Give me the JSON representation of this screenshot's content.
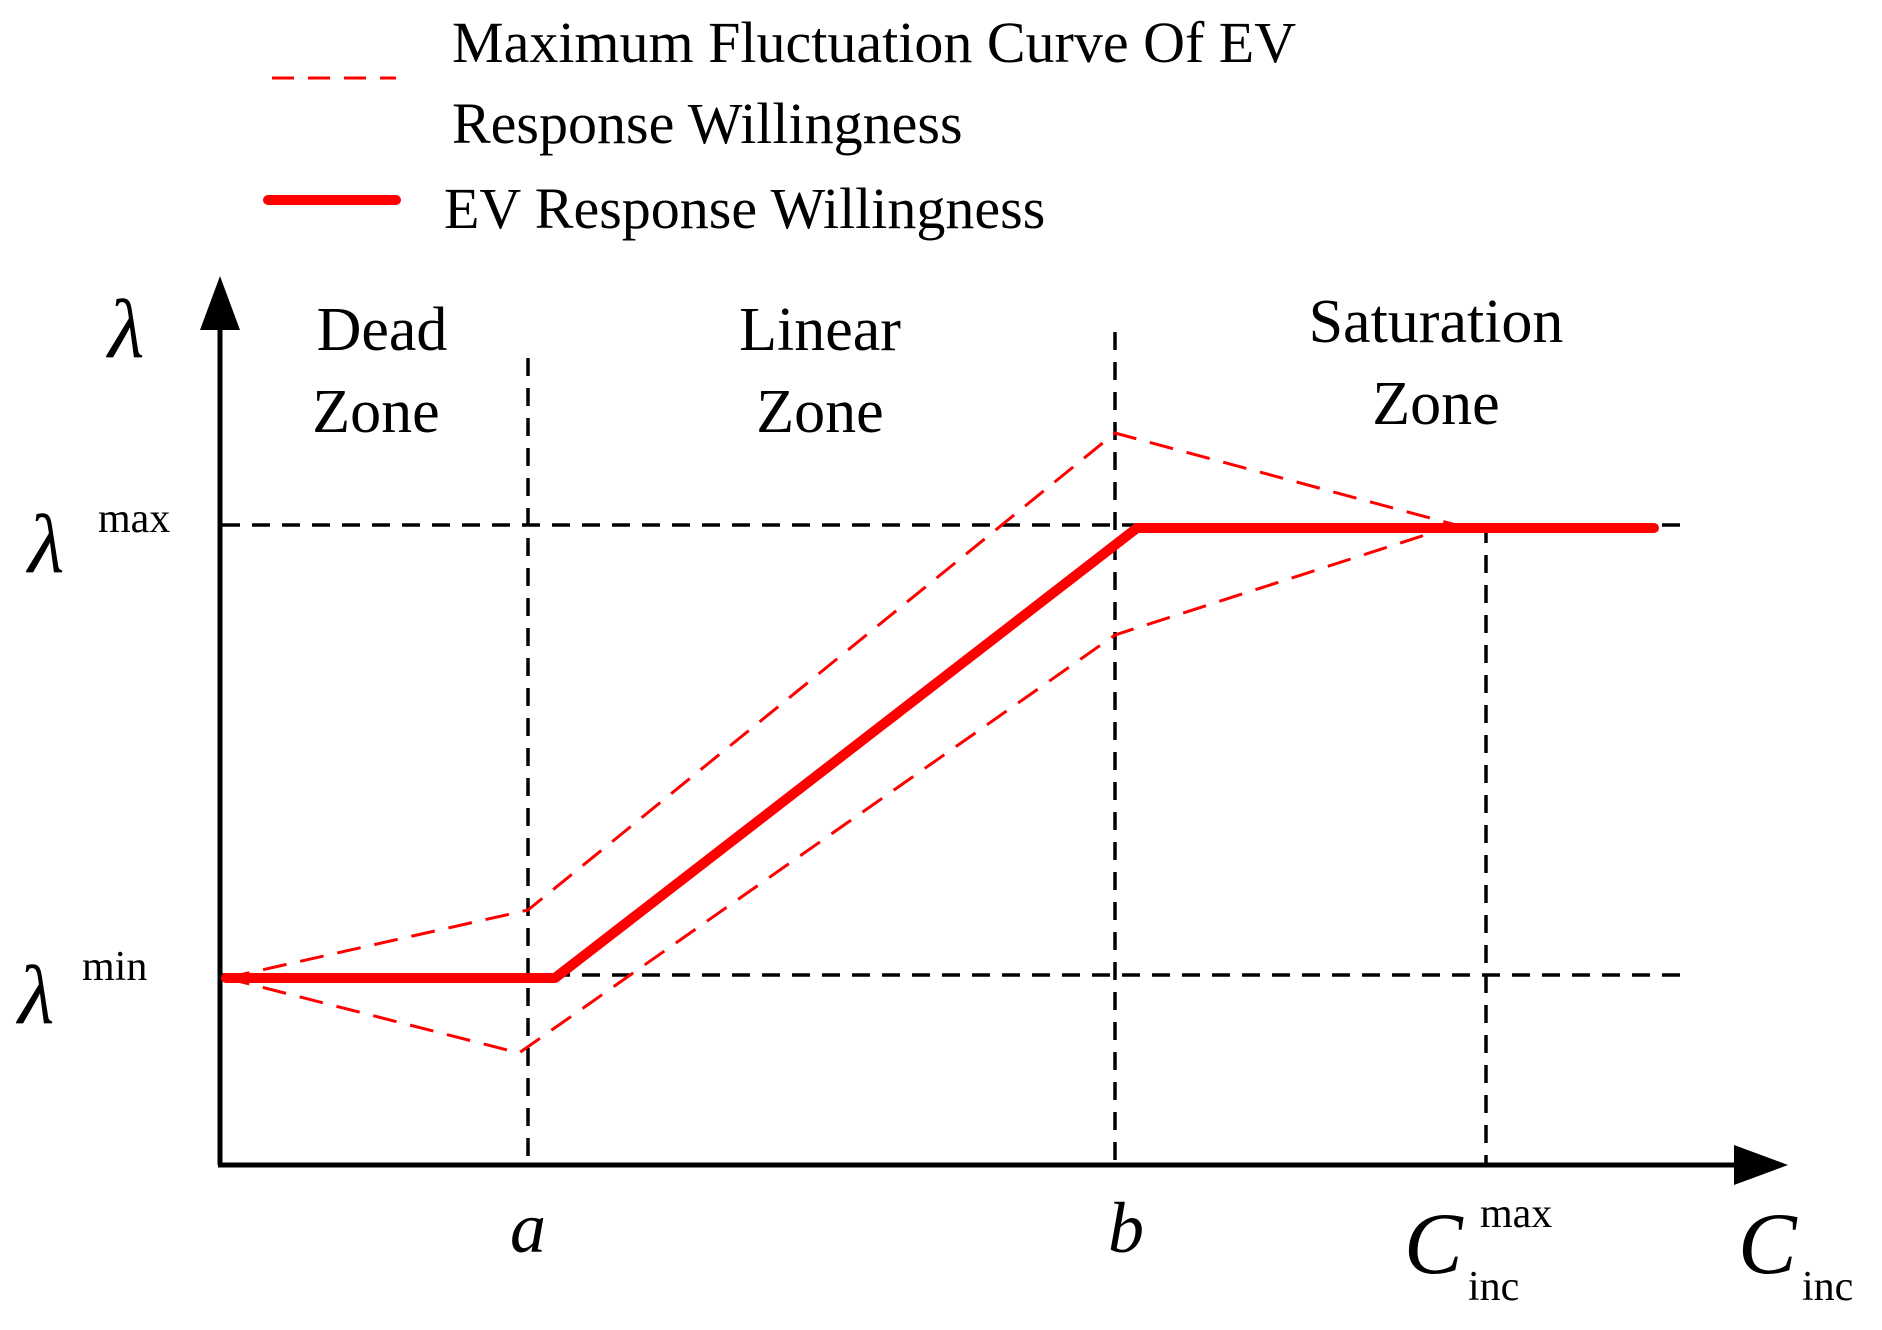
{
  "legend": {
    "dashed_label_line1": "Maximum Fluctuation Curve Of EV",
    "dashed_label_line2": "Response Willingness",
    "solid_label": "EV Response Willingness"
  },
  "axes": {
    "y_symbol": "λ",
    "x_symbol": "C",
    "x_subscript": "inc"
  },
  "y_levels": {
    "max": {
      "symbol": "λ",
      "superscript": "max"
    },
    "min": {
      "symbol": "λ",
      "superscript": "min"
    }
  },
  "x_markers": {
    "a": "a",
    "b": "b",
    "c_max": {
      "symbol": "C",
      "superscript": "max",
      "subscript": "inc"
    }
  },
  "zones": {
    "dead": {
      "line1": "Dead",
      "line2": "Zone"
    },
    "linear": {
      "line1": "Linear",
      "line2": "Zone"
    },
    "saturation": {
      "line1": "Saturation",
      "line2": "Zone"
    }
  },
  "colors": {
    "curve": "#ff0000",
    "axis": "#000000",
    "guide": "#000000"
  },
  "chart_data": {
    "type": "line",
    "title": "",
    "xlabel": "C_inc",
    "ylabel": "λ",
    "x_markers": [
      "a",
      "b",
      "C_inc^max"
    ],
    "y_levels": [
      "λ^min",
      "λ^max"
    ],
    "series": [
      {
        "name": "EV Response Willingness",
        "style": "solid",
        "points": [
          [
            "0",
            "λ^min"
          ],
          [
            "a",
            "λ^min"
          ],
          [
            "b",
            "λ^max"
          ],
          [
            "C_inc^max",
            "λ^max"
          ]
        ]
      },
      {
        "name": "Maximum Fluctuation Curve Of EV Response Willingness (upper)",
        "style": "dashed",
        "points": [
          [
            "0",
            "λ^min"
          ],
          [
            "a",
            "above λ^min"
          ],
          [
            "b",
            "above λ^max"
          ],
          [
            "C_inc^max",
            "λ^max"
          ]
        ]
      },
      {
        "name": "Maximum Fluctuation Curve Of EV Response Willingness (lower)",
        "style": "dashed",
        "points": [
          [
            "0",
            "λ^min"
          ],
          [
            "a",
            "below λ^min"
          ],
          [
            "b",
            "below λ^max"
          ],
          [
            "C_inc^max",
            "λ^max"
          ]
        ]
      }
    ]
  }
}
